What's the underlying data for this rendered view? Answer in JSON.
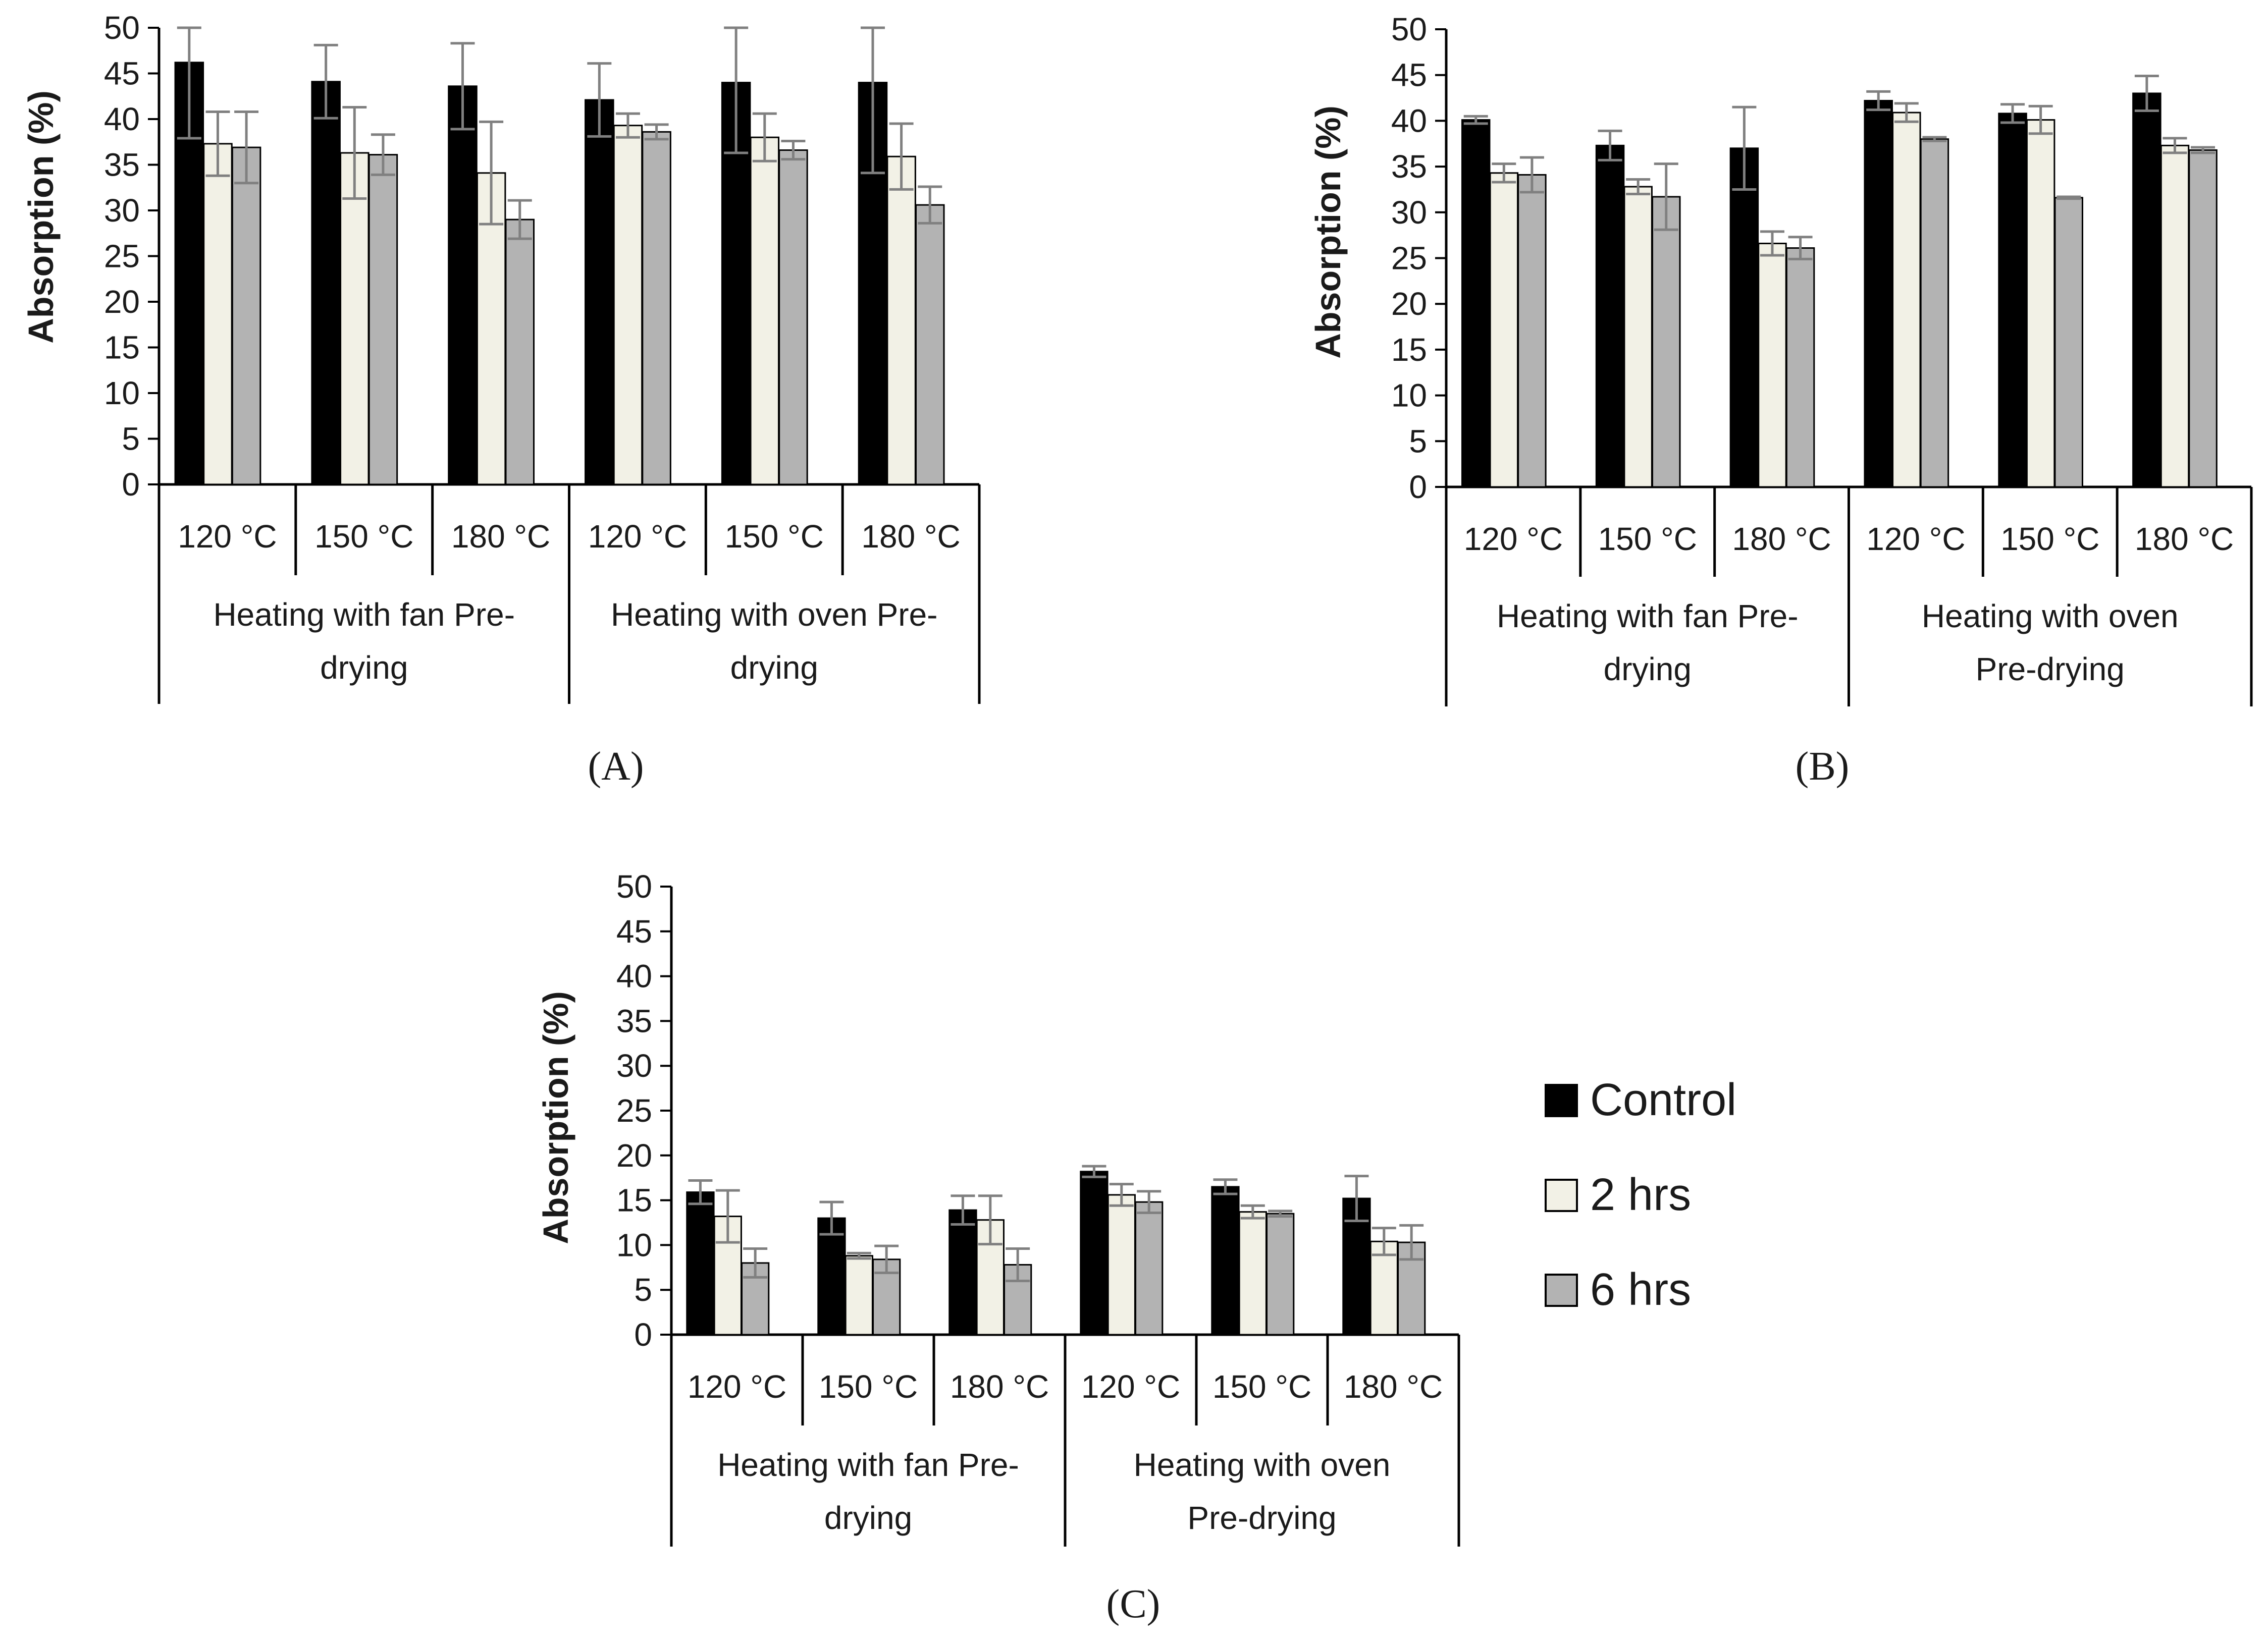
{
  "colors": {
    "control": "#000000",
    "two_hrs": "#f2f1e6",
    "six_hrs": "#b3b3b3",
    "axis": "#000000",
    "error": "#808080"
  },
  "legend": [
    "Control",
    "2 hrs",
    "6 hrs"
  ],
  "chart_data": [
    {
      "type": "bar",
      "panel_label": "(A)",
      "ylabel": "Absorption (%)",
      "ylim": [
        0,
        50
      ],
      "yticks": [
        0,
        5,
        10,
        15,
        20,
        25,
        30,
        35,
        40,
        45,
        50
      ],
      "categories": [
        "120 °C",
        "150 °C",
        "180 °C",
        "120 °C",
        "150 °C",
        "180 °C"
      ],
      "groups": [
        {
          "lines": [
            "Heating with fan Pre-",
            "drying"
          ],
          "span": [
            0,
            2
          ]
        },
        {
          "lines": [
            "Heating with oven Pre-",
            "drying"
          ],
          "span": [
            3,
            5
          ]
        }
      ],
      "series": [
        {
          "name": "Control",
          "values": [
            46.2,
            44.1,
            43.6,
            42.1,
            44.0,
            44.0
          ],
          "errors": [
            8.3,
            4.0,
            4.7,
            4.0,
            7.7,
            9.9
          ]
        },
        {
          "name": "2 hrs",
          "values": [
            37.3,
            36.3,
            34.1,
            39.3,
            38.0,
            35.9
          ],
          "errors": [
            3.5,
            5.0,
            5.6,
            1.3,
            2.6,
            3.6
          ]
        },
        {
          "name": "6 hrs",
          "values": [
            36.9,
            36.1,
            29.0,
            38.6,
            36.6,
            30.6
          ],
          "errors": [
            3.9,
            2.2,
            2.1,
            0.8,
            1.0,
            2.0
          ]
        }
      ]
    },
    {
      "type": "bar",
      "panel_label": "(B)",
      "ylabel": "Absorption (%)",
      "ylim": [
        0,
        50
      ],
      "yticks": [
        0,
        5,
        10,
        15,
        20,
        25,
        30,
        35,
        40,
        45,
        50
      ],
      "categories": [
        "120 °C",
        "150 °C",
        "180 °C",
        "120 °C",
        "150 °C",
        "180 °C"
      ],
      "groups": [
        {
          "lines": [
            "Heating with fan Pre-",
            "drying"
          ],
          "span": [
            0,
            2
          ]
        },
        {
          "lines": [
            "Heating with oven",
            "Pre-drying"
          ],
          "span": [
            3,
            5
          ]
        }
      ],
      "series": [
        {
          "name": "Control",
          "values": [
            40.1,
            37.3,
            37.0,
            42.2,
            40.8,
            43.0
          ],
          "errors": [
            0.4,
            1.6,
            4.5,
            1.0,
            1.0,
            1.9
          ]
        },
        {
          "name": "2 hrs",
          "values": [
            34.3,
            32.8,
            26.6,
            40.9,
            40.1,
            37.3
          ],
          "errors": [
            1.0,
            0.8,
            1.3,
            1.0,
            1.5,
            0.8
          ]
        },
        {
          "name": "6 hrs",
          "values": [
            34.1,
            31.7,
            26.1,
            38.0,
            31.6,
            36.8
          ],
          "errors": [
            1.9,
            3.6,
            1.2,
            0.2,
            0.1,
            0.3
          ]
        }
      ]
    },
    {
      "type": "bar",
      "panel_label": "(C)",
      "ylabel": "Absorption (%)",
      "ylim": [
        0,
        50
      ],
      "yticks": [
        0,
        5,
        10,
        15,
        20,
        25,
        30,
        35,
        40,
        45,
        50
      ],
      "categories": [
        "120 °C",
        "150 °C",
        "180 °C",
        "120 °C",
        "150 °C",
        "180 °C"
      ],
      "groups": [
        {
          "lines": [
            "Heating with fan Pre-",
            "drying"
          ],
          "span": [
            0,
            2
          ]
        },
        {
          "lines": [
            "Heating with oven",
            "Pre-drying"
          ],
          "span": [
            3,
            5
          ]
        }
      ],
      "series": [
        {
          "name": "Control",
          "values": [
            15.9,
            13.0,
            13.9,
            18.2,
            16.5,
            15.2
          ],
          "errors": [
            1.3,
            1.8,
            1.6,
            0.6,
            0.8,
            2.5
          ]
        },
        {
          "name": "2 hrs",
          "values": [
            13.2,
            8.8,
            12.8,
            15.6,
            13.7,
            10.4
          ],
          "errors": [
            2.9,
            0.3,
            2.7,
            1.2,
            0.7,
            1.5
          ]
        },
        {
          "name": "6 hrs",
          "values": [
            8.0,
            8.4,
            7.8,
            14.8,
            13.5,
            10.3
          ],
          "errors": [
            1.6,
            1.5,
            1.8,
            1.2,
            0.3,
            1.9
          ]
        }
      ]
    }
  ]
}
